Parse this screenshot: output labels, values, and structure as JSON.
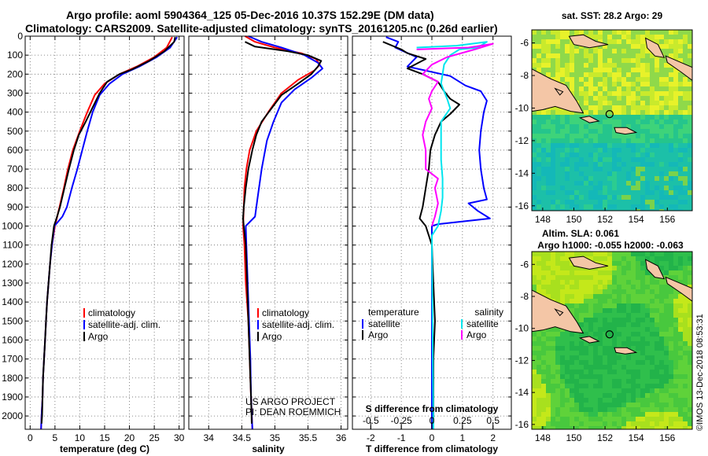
{
  "header": {
    "line1": "Argo profile: aoml 5904364_125 05-Dec-2016 10.37S 152.29E (DM data)",
    "line2": "Climatology: CARS2009. Satellite-adjusted climatology: synTS_20161205.nc (0.26d earlier)"
  },
  "colors": {
    "climatology": "#ff0000",
    "satellite": "#0000ff",
    "argo": "#000000",
    "sat_salinity": "#00e5ee",
    "clim_salinity": "#ff00ff"
  },
  "chart_data": [
    {
      "type": "line",
      "title": "",
      "xlabel": "temperature (deg C)",
      "ylabel": "",
      "xlim": [
        -1,
        31
      ],
      "ylim": [
        2070,
        0
      ],
      "xticks": [
        0,
        5,
        10,
        15,
        20,
        25,
        30
      ],
      "yticks": [
        0,
        100,
        200,
        300,
        400,
        500,
        600,
        700,
        800,
        900,
        1000,
        1100,
        1200,
        1300,
        1400,
        1500,
        1600,
        1700,
        1800,
        1900,
        2000
      ],
      "legend": [
        "climatology",
        "satellite-adj. clim.",
        "Argo"
      ],
      "series": [
        {
          "name": "climatology",
          "color": "#ff0000",
          "points": [
            [
              28.6,
              5
            ],
            [
              27.5,
              60
            ],
            [
              25,
              110
            ],
            [
              21.5,
              160
            ],
            [
              18,
              200
            ],
            [
              15,
              250
            ],
            [
              13,
              310
            ],
            [
              11.5,
              400
            ],
            [
              10,
              500
            ],
            [
              8.6,
              600
            ],
            [
              7.6,
              700
            ],
            [
              6.8,
              800
            ],
            [
              5.9,
              900
            ],
            [
              5,
              1000
            ],
            [
              4.4,
              1100
            ],
            [
              4,
              1200
            ],
            [
              3.7,
              1300
            ],
            [
              3.4,
              1400
            ],
            [
              3.2,
              1500
            ],
            [
              3,
              1600
            ],
            [
              2.8,
              1700
            ],
            [
              2.6,
              1800
            ],
            [
              2.5,
              1900
            ],
            [
              2.3,
              2000
            ],
            [
              2.2,
              2070
            ]
          ]
        },
        {
          "name": "satellite-adj. clim.",
          "color": "#0000ff",
          "points": [
            [
              29.6,
              5
            ],
            [
              28.2,
              60
            ],
            [
              25.5,
              110
            ],
            [
              22,
              160
            ],
            [
              18.6,
              200
            ],
            [
              16,
              250
            ],
            [
              14,
              310
            ],
            [
              12.6,
              400
            ],
            [
              11.5,
              500
            ],
            [
              10.5,
              600
            ],
            [
              9.5,
              700
            ],
            [
              8.4,
              800
            ],
            [
              7.4,
              900
            ],
            [
              6.5,
              950
            ],
            [
              4.9,
              1000
            ],
            [
              4.4,
              1100
            ],
            [
              4,
              1200
            ],
            [
              3.7,
              1300
            ],
            [
              3.4,
              1400
            ],
            [
              3.2,
              1500
            ],
            [
              3,
              1600
            ],
            [
              2.8,
              1700
            ],
            [
              2.6,
              1800
            ],
            [
              2.5,
              1900
            ],
            [
              2.3,
              2000
            ],
            [
              2.2,
              2070
            ]
          ]
        },
        {
          "name": "Argo",
          "color": "#000000",
          "points": [
            [
              29.2,
              5
            ],
            [
              29,
              30
            ],
            [
              27,
              80
            ],
            [
              24,
              130
            ],
            [
              20.5,
              175
            ],
            [
              18,
              200
            ],
            [
              15.5,
              240
            ],
            [
              14,
              300
            ],
            [
              12.5,
              380
            ],
            [
              11.2,
              450
            ],
            [
              9.8,
              520
            ],
            [
              8.8,
              600
            ],
            [
              7.8,
              700
            ],
            [
              6.9,
              800
            ],
            [
              6,
              900
            ],
            [
              5.3,
              960
            ],
            [
              4.8,
              1000
            ],
            [
              4.3,
              1100
            ],
            [
              4,
              1200
            ],
            [
              3.7,
              1300
            ],
            [
              3.4,
              1400
            ],
            [
              3.2,
              1500
            ],
            [
              3,
              1600
            ],
            [
              2.8,
              1700
            ],
            [
              2.6,
              1800
            ],
            [
              2.5,
              1900
            ],
            [
              2.4,
              2000
            ],
            [
              2.3,
              2040
            ]
          ]
        }
      ]
    },
    {
      "type": "line",
      "title": "",
      "xlabel": "salinity",
      "ylabel": "",
      "xlim": [
        33.7,
        36.1
      ],
      "ylim": [
        2070,
        0
      ],
      "xticks": [
        34,
        34.5,
        35,
        35.5,
        36
      ],
      "legend": [
        "climatology",
        "satellite-adj. clim.",
        "Argo"
      ],
      "annotations": [
        "US ARGO PROJECT",
        "PI: DEAN ROEMMICH"
      ],
      "series": [
        {
          "name": "climatology",
          "color": "#ff0000",
          "points": [
            [
              34.55,
              0
            ],
            [
              34.7,
              30
            ],
            [
              35,
              60
            ],
            [
              35.4,
              90
            ],
            [
              35.62,
              120
            ],
            [
              35.68,
              150
            ],
            [
              35.6,
              180
            ],
            [
              35.35,
              230
            ],
            [
              35.1,
              300
            ],
            [
              34.9,
              400
            ],
            [
              34.72,
              500
            ],
            [
              34.62,
              600
            ],
            [
              34.57,
              700
            ],
            [
              34.54,
              800
            ],
            [
              34.53,
              900
            ],
            [
              34.52,
              1000
            ],
            [
              34.54,
              1100
            ],
            [
              34.56,
              1300
            ],
            [
              34.6,
              1500
            ],
            [
              34.62,
              1700
            ],
            [
              34.64,
              1900
            ],
            [
              34.66,
              2070
            ]
          ]
        },
        {
          "name": "satellite-adj. clim.",
          "color": "#0000ff",
          "points": [
            [
              34.6,
              0
            ],
            [
              34.8,
              30
            ],
            [
              35.1,
              60
            ],
            [
              35.45,
              100
            ],
            [
              35.65,
              140
            ],
            [
              35.72,
              170
            ],
            [
              35.55,
              220
            ],
            [
              35.3,
              280
            ],
            [
              35.1,
              350
            ],
            [
              34.98,
              450
            ],
            [
              34.88,
              550
            ],
            [
              34.8,
              700
            ],
            [
              34.74,
              850
            ],
            [
              34.7,
              950
            ],
            [
              34.56,
              1000
            ],
            [
              34.57,
              1100
            ],
            [
              34.59,
              1300
            ],
            [
              34.61,
              1500
            ],
            [
              34.63,
              1700
            ],
            [
              34.64,
              1900
            ],
            [
              34.66,
              2070
            ]
          ]
        },
        {
          "name": "Argo",
          "color": "#000000",
          "points": [
            [
              34.55,
              30
            ],
            [
              34.7,
              55
            ],
            [
              35.2,
              80
            ],
            [
              35.5,
              100
            ],
            [
              35.7,
              130
            ],
            [
              35.65,
              160
            ],
            [
              35.55,
              200
            ],
            [
              35.35,
              250
            ],
            [
              35.1,
              310
            ],
            [
              34.95,
              380
            ],
            [
              34.8,
              450
            ],
            [
              34.72,
              520
            ],
            [
              34.66,
              600
            ],
            [
              34.6,
              700
            ],
            [
              34.56,
              800
            ],
            [
              34.53,
              900
            ],
            [
              34.52,
              960
            ],
            [
              34.53,
              1000
            ],
            [
              34.56,
              1100
            ],
            [
              34.58,
              1300
            ],
            [
              34.6,
              1500
            ],
            [
              34.62,
              1700
            ],
            [
              34.64,
              1900
            ],
            [
              34.65,
              2040
            ]
          ]
        }
      ]
    },
    {
      "type": "line",
      "title": "",
      "xlabel": "T difference from climatology",
      "xlabel2": "S difference from climatology",
      "xlim": [
        -2.6,
        2.6
      ],
      "ylim": [
        2070,
        0
      ],
      "xticks": [
        -2,
        -1,
        0,
        1,
        2
      ],
      "xticks2": [
        -0.5,
        -0.25,
        0,
        0.25,
        0.5
      ],
      "xticklabels2": [
        "-0.5",
        "-0.25",
        "0",
        "0.25",
        "0.5"
      ],
      "legend_left_title": "temperature",
      "legend_right_title": "salinity",
      "legend_left": [
        "satellite",
        "Argo"
      ],
      "legend_right": [
        "satellite",
        "Argo"
      ],
      "series": [
        {
          "name": "T satellite",
          "color": "#0000ff",
          "points": [
            [
              -1.5,
              5
            ],
            [
              -1.1,
              30
            ],
            [
              -1.2,
              60
            ],
            [
              -0.5,
              110
            ],
            [
              -0.8,
              160
            ],
            [
              0.6,
              210
            ],
            [
              1.1,
              260
            ],
            [
              1.6,
              290
            ],
            [
              1.8,
              340
            ],
            [
              1.7,
              400
            ],
            [
              1.6,
              500
            ],
            [
              1.55,
              600
            ],
            [
              1.6,
              700
            ],
            [
              1.7,
              800
            ],
            [
              1.8,
              860
            ],
            [
              1.2,
              880
            ],
            [
              1.5,
              920
            ],
            [
              1.9,
              960
            ],
            [
              0.2,
              990
            ],
            [
              0,
              1000
            ],
            [
              0,
              2070
            ]
          ]
        },
        {
          "name": "T Argo",
          "color": "#000000",
          "points": [
            [
              -1.6,
              30
            ],
            [
              -1.0,
              70
            ],
            [
              -0.8,
              90
            ],
            [
              -0.2,
              120
            ],
            [
              -0.8,
              170
            ],
            [
              -0.3,
              200
            ],
            [
              0.2,
              240
            ],
            [
              0.4,
              290
            ],
            [
              0.6,
              330
            ],
            [
              0.9,
              360
            ],
            [
              0.6,
              410
            ],
            [
              0.3,
              450
            ],
            [
              0.1,
              520
            ],
            [
              -0.05,
              600
            ],
            [
              -0.1,
              700
            ],
            [
              -0.2,
              800
            ],
            [
              -0.3,
              900
            ],
            [
              -0.4,
              960
            ],
            [
              -0.2,
              1000
            ],
            [
              0,
              1100
            ],
            [
              0.05,
              1300
            ],
            [
              0.1,
              1500
            ],
            [
              0.05,
              1700
            ],
            [
              0.05,
              1900
            ],
            [
              0.05,
              2040
            ]
          ]
        },
        {
          "name": "S satellite",
          "color": "#00e5ee",
          "points": [
            [
              -0.5,
              60
            ],
            [
              0.8,
              50
            ],
            [
              1.8,
              30
            ],
            [
              1.5,
              60
            ],
            [
              0.9,
              70
            ],
            [
              0.6,
              100
            ],
            [
              0.4,
              150
            ],
            [
              0.3,
              250
            ],
            [
              0.5,
              330
            ],
            [
              0.6,
              380
            ],
            [
              0.3,
              450
            ],
            [
              0.3,
              550
            ],
            [
              0.3,
              650
            ],
            [
              0.35,
              750
            ],
            [
              0.35,
              850
            ],
            [
              0.3,
              920
            ],
            [
              0.2,
              1000
            ],
            [
              0,
              1050
            ],
            [
              0.05,
              2070
            ]
          ]
        },
        {
          "name": "S Argo",
          "color": "#ff00ff",
          "points": [
            [
              -0.5,
              70
            ],
            [
              1.2,
              60
            ],
            [
              2.0,
              40
            ],
            [
              1.4,
              70
            ],
            [
              0.5,
              110
            ],
            [
              0,
              150
            ],
            [
              -0.3,
              200
            ],
            [
              0.2,
              240
            ],
            [
              0,
              290
            ],
            [
              -0.1,
              330
            ],
            [
              0,
              380
            ],
            [
              -0.2,
              450
            ],
            [
              -0.3,
              520
            ],
            [
              -0.2,
              600
            ],
            [
              -0.2,
              700
            ],
            [
              0.2,
              750
            ],
            [
              0.1,
              800
            ],
            [
              0.2,
              880
            ],
            [
              0.1,
              950
            ],
            [
              0,
              1000
            ]
          ]
        }
      ]
    },
    {
      "type": "heatmap",
      "title": "sat. SST: 28.2 Argo: 29",
      "xlim": [
        147.3,
        157.6
      ],
      "ylim": [
        -16.3,
        -5.2
      ],
      "xticks": [
        148,
        150,
        152,
        154,
        156
      ],
      "yticks": [
        -6,
        -8,
        -10,
        -12,
        -14,
        -16
      ],
      "argo_position": [
        152.29,
        -10.37
      ]
    },
    {
      "type": "heatmap",
      "title": "Altim. SLA: 0.061",
      "subtitle": "Argo h1000: -0.055 h2000: -0.063",
      "xlim": [
        147.3,
        157.6
      ],
      "ylim": [
        -16.3,
        -5.2
      ],
      "xticks": [
        148,
        150,
        152,
        154,
        156
      ],
      "yticks": [
        -6,
        -8,
        -10,
        -12,
        -14,
        -16
      ],
      "argo_position": [
        152.29,
        -10.37
      ]
    }
  ],
  "credit": "©IMOS 13-Dec-2018 08:53:31"
}
